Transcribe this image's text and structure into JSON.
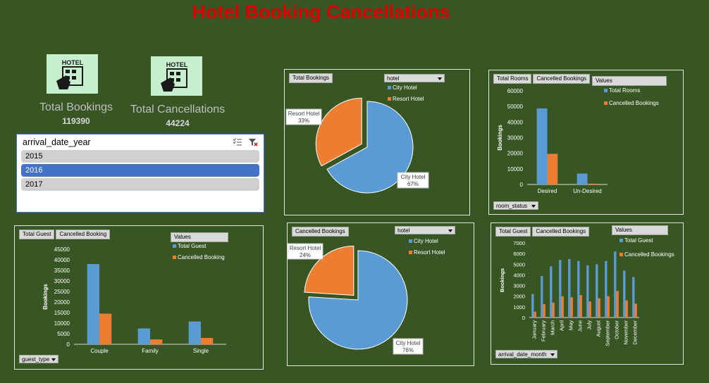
{
  "title": "Hotel Booking Cancellations",
  "kpis": {
    "bookings": {
      "label": "Total Bookings",
      "value": "119390",
      "icon_text": "HOTEL"
    },
    "cancellations": {
      "label": "Total Cancellations",
      "value": "44224",
      "icon_text": "HOTEL"
    }
  },
  "slicer": {
    "title": "arrival_date_year",
    "items": [
      "2015",
      "2016",
      "2017"
    ],
    "selected": "2016"
  },
  "colors": {
    "blue": "#5b9bd5",
    "orange": "#ed7d31",
    "background": "#375623",
    "title": "#e00000"
  },
  "chart_data": [
    {
      "id": "pie_bookings",
      "type": "pie",
      "field_button": "Total Bookings",
      "filter": "hotel",
      "legend": [
        "City Hotel",
        "Resort Hotel"
      ],
      "slices": [
        {
          "label": "City Hotel",
          "value": 67,
          "display": "67%"
        },
        {
          "label": "Resort Hotel",
          "value": 33,
          "display": "33%"
        }
      ]
    },
    {
      "id": "bar_rooms",
      "type": "bar",
      "field_buttons": [
        "Total Rooms",
        "Cancelled Bookings"
      ],
      "values_label": "Values",
      "axis_button": "room_status",
      "ylabel": "Bookings",
      "categories": [
        "Desired",
        "Un-Desired"
      ],
      "series": [
        {
          "name": "Total Rooms",
          "values": [
            48700,
            7000
          ]
        },
        {
          "name": "Cancelled Bookings",
          "values": [
            19600,
            500
          ]
        }
      ],
      "ylim": [
        0,
        60000
      ],
      "yticks": [
        "0",
        "10000",
        "20000",
        "30000",
        "40000",
        "50000",
        "60000"
      ]
    },
    {
      "id": "bar_guests",
      "type": "bar",
      "field_buttons": [
        "Total Guest",
        "Cancelled Booking"
      ],
      "values_label": "Values",
      "axis_button": "guest_type",
      "ylabel": "Bookings",
      "categories": [
        "Couple",
        "Family",
        "Single"
      ],
      "series": [
        {
          "name": "Total Guest",
          "values": [
            38000,
            7500,
            10800
          ]
        },
        {
          "name": "Cancelled Booking",
          "values": [
            14500,
            2300,
            3000
          ]
        }
      ],
      "ylim": [
        0,
        45000
      ],
      "yticks": [
        "0",
        "5000",
        "10000",
        "15000",
        "20000",
        "25000",
        "30000",
        "35000",
        "40000",
        "45000"
      ]
    },
    {
      "id": "pie_cancelled",
      "type": "pie",
      "field_button": "Cancelled Bookings",
      "filter": "hotel",
      "legend": [
        "City Hotel",
        "Resort Hotel"
      ],
      "slices": [
        {
          "label": "City Hotel",
          "value": 76,
          "display": "76%"
        },
        {
          "label": "Resort Hotel",
          "value": 24,
          "display": "24%"
        }
      ]
    },
    {
      "id": "bar_months",
      "type": "bar",
      "field_buttons": [
        "Total Guest",
        "Cancelled Bookings"
      ],
      "values_label": "Values",
      "axis_button": "arrival_date_month",
      "ylabel": "Bookings",
      "categories": [
        "January",
        "February",
        "March",
        "April",
        "May",
        "June",
        "July",
        "August",
        "September",
        "October",
        "November",
        "December"
      ],
      "series": [
        {
          "name": "Total Guest",
          "values": [
            2200,
            3900,
            4800,
            5400,
            5500,
            5300,
            4900,
            5000,
            5300,
            6200,
            4400,
            3800
          ]
        },
        {
          "name": "Cancelled Bookings",
          "values": [
            550,
            1250,
            1400,
            2000,
            1900,
            2100,
            1500,
            1800,
            2000,
            2500,
            1600,
            1300
          ]
        }
      ],
      "ylim": [
        0,
        7000
      ],
      "yticks": [
        "0",
        "1000",
        "2000",
        "3000",
        "4000",
        "5000",
        "6000",
        "7000"
      ]
    }
  ]
}
